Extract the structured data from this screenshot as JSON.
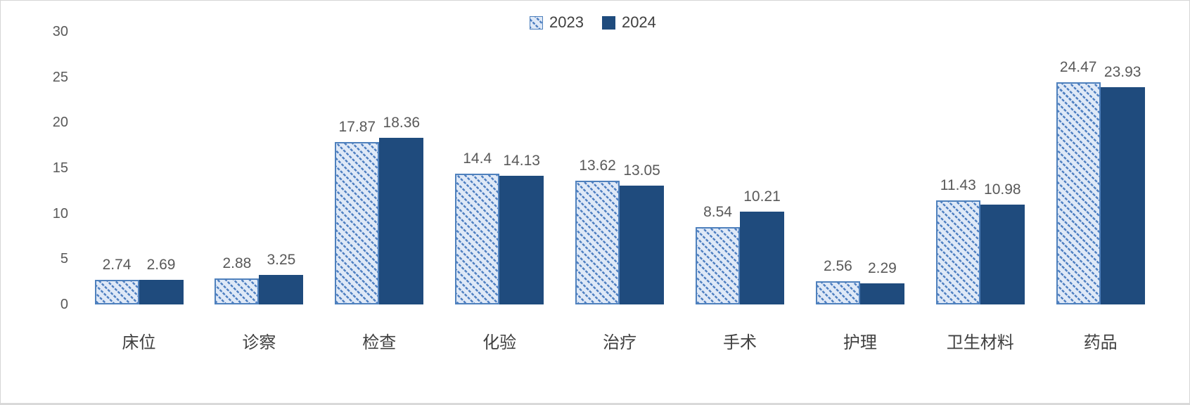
{
  "chart_data": {
    "type": "bar",
    "title": "",
    "xlabel": "",
    "ylabel": "",
    "categories": [
      "床位",
      "诊察",
      "检查",
      "化验",
      "治疗",
      "手术",
      "护理",
      "卫生材料",
      "药品"
    ],
    "series": [
      {
        "name": "2023",
        "fill": "hatched",
        "values": [
          2.74,
          2.88,
          17.87,
          14.4,
          13.62,
          8.54,
          2.56,
          11.43,
          24.47
        ]
      },
      {
        "name": "2024",
        "fill": "solid",
        "values": [
          2.69,
          3.25,
          18.36,
          14.13,
          13.05,
          10.21,
          2.29,
          10.98,
          23.93
        ]
      }
    ],
    "ylim": [
      0,
      30
    ],
    "yticks": [
      0,
      5,
      10,
      15,
      20,
      25,
      30
    ],
    "grid": false,
    "legend_position": "top-center",
    "value_labels": true
  },
  "colors": {
    "series_2023_border": "#4f81bd",
    "series_2023_hatch_line": "#4e7fc1",
    "series_2023_background": "#dfe9f7",
    "series_2024_fill": "#1f4b7d",
    "tick_label": "#595959",
    "value_label": "#595959",
    "category_label": "#404040",
    "legend_text": "#404040"
  }
}
